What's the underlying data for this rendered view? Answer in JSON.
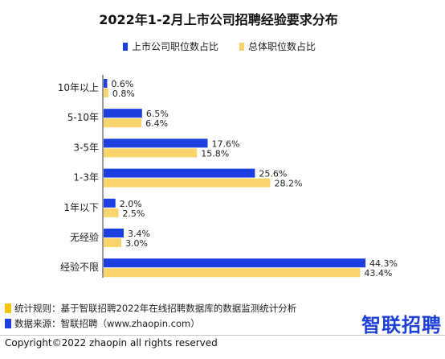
{
  "chart_data": {
    "type": "bar",
    "title": "2022年1-2月上市公司招聘经验要求分布",
    "categories": [
      "10年以上",
      "5-10年",
      "3-5年",
      "1-3年",
      "1年以下",
      "无经验",
      "经验不限"
    ],
    "series": [
      {
        "name": "上市公司职位数占比",
        "color": "#1d3fe0",
        "values": [
          0.6,
          6.5,
          17.6,
          25.6,
          2.0,
          3.4,
          44.3
        ],
        "labels": [
          "0.6%",
          "6.5%",
          "17.6%",
          "25.6%",
          "2.0%",
          "3.4%",
          "44.3%"
        ]
      },
      {
        "name": "总体职位数占比",
        "color": "#f8d56a",
        "values": [
          0.8,
          6.4,
          15.8,
          28.2,
          2.5,
          3.0,
          43.4
        ],
        "labels": [
          "0.8%",
          "6.4%",
          "15.8%",
          "28.2%",
          "2.5%",
          "3.0%",
          "43.4%"
        ]
      }
    ],
    "xlim": [
      0,
      44.3
    ],
    "legend_position": "top-center",
    "grid": false
  },
  "footer": {
    "rule_label": "统计规则：基于智联招聘2022年在线招聘数据库的数据监测统计分析",
    "source_label": "数据来源：智联招聘（www.zhaopin.com）",
    "rule_color": "#f5c40b",
    "source_color": "#1d3fe0",
    "brand": "智联招聘",
    "copyright": "Copyright©2022 zhaopin all rights reserved"
  }
}
